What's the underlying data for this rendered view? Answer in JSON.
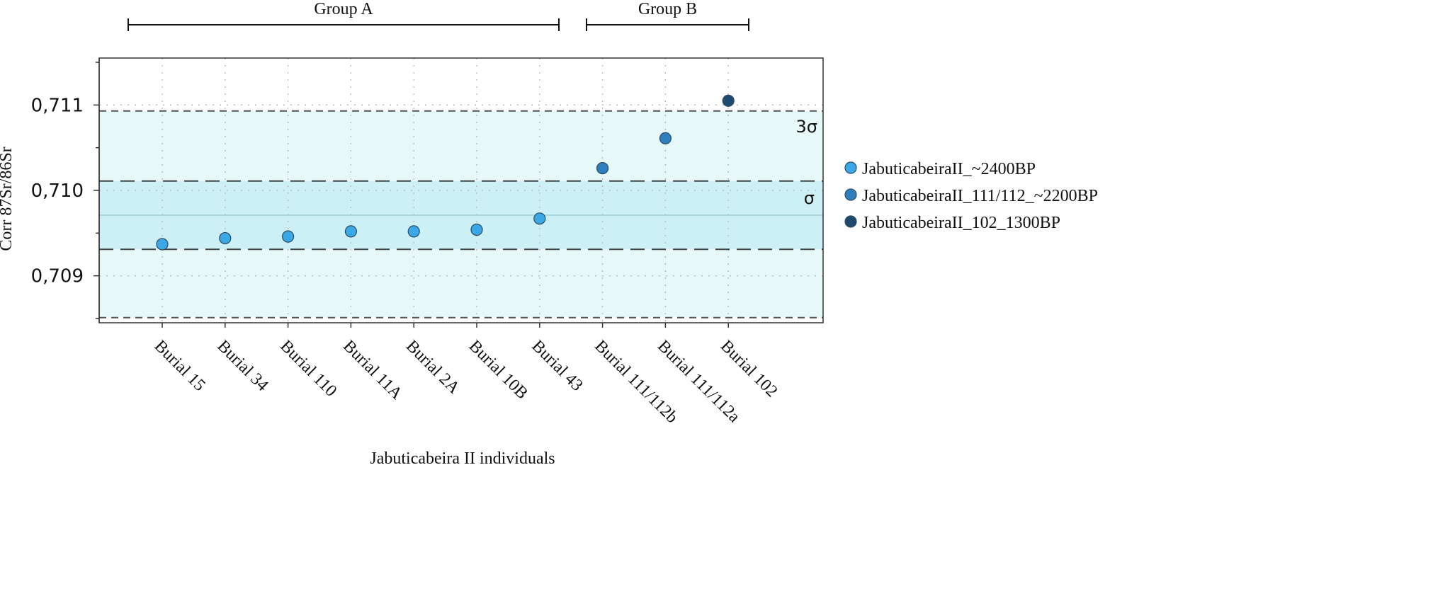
{
  "chart_data": {
    "type": "scatter",
    "title": "",
    "xlabel": "Jabuticabeira II individuals",
    "ylabel": "Corr 87Sr/86Sr",
    "ylim": [
      0.70845,
      0.71155
    ],
    "yticks": [
      {
        "value": 0.709,
        "label": "0,709"
      },
      {
        "value": 0.71,
        "label": "0,710"
      },
      {
        "value": 0.711,
        "label": "0,711"
      }
    ],
    "categories": [
      "Burial 15",
      "Burial 34",
      "Burial 110",
      "Burial 11A",
      "Burial 2A",
      "Burial 10B",
      "Burial 43",
      "Burial 111/112b",
      "Burial 111/112a",
      "Burial 102"
    ],
    "series": [
      {
        "name": "JabuticabeiraII_~2400BP",
        "color": "#3aa8e6",
        "points": [
          {
            "category": "Burial 15",
            "value": 0.70937
          },
          {
            "category": "Burial 34",
            "value": 0.70944
          },
          {
            "category": "Burial 110",
            "value": 0.70946
          },
          {
            "category": "Burial 11A",
            "value": 0.70952
          },
          {
            "category": "Burial 2A",
            "value": 0.70952
          },
          {
            "category": "Burial 10B",
            "value": 0.70954
          },
          {
            "category": "Burial 43",
            "value": 0.70967
          }
        ]
      },
      {
        "name": "JabuticabeiraII_111/112_~2200BP",
        "color": "#2f7fbe",
        "points": [
          {
            "category": "Burial 111/112b",
            "value": 0.71026
          },
          {
            "category": "Burial 111/112a",
            "value": 0.71061
          }
        ]
      },
      {
        "name": "JabuticabeiraII_102_1300BP",
        "color": "#1d4a6e",
        "points": [
          {
            "category": "Burial 102",
            "value": 0.71105
          }
        ]
      }
    ],
    "reference": {
      "mean": 0.70971,
      "sigma_band": [
        0.70931,
        0.71011
      ],
      "three_sigma_band": [
        0.70851,
        0.71093
      ],
      "sigma_label": "σ",
      "three_sigma_label": "3σ"
    },
    "groups": [
      {
        "label": "Group A",
        "from": "Burial 15",
        "to": "Burial 43"
      },
      {
        "label": "Group B",
        "from": "Burial 111/112b",
        "to": "Burial 102"
      }
    ],
    "grid": true,
    "legend_position": "right"
  }
}
